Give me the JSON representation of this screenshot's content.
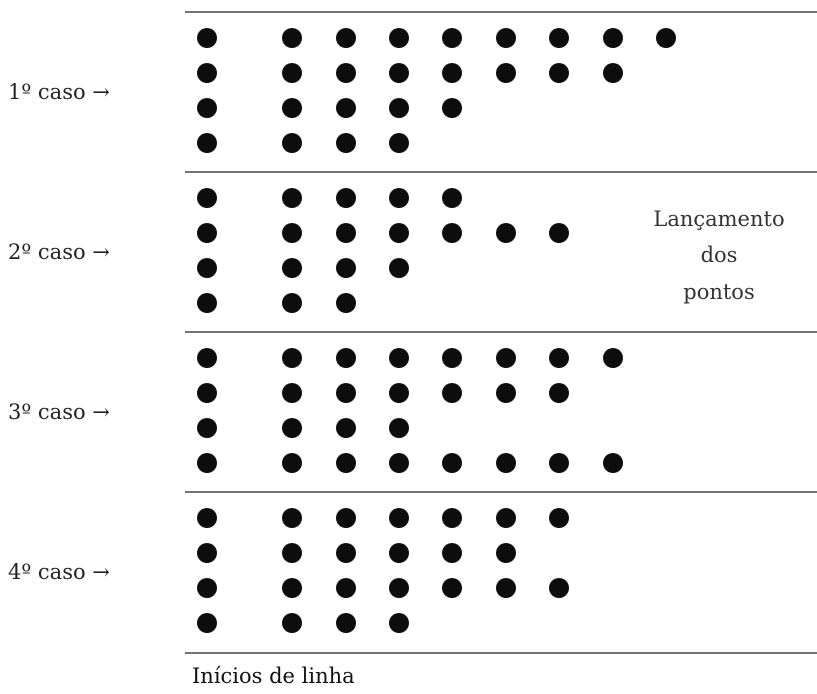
{
  "cases": [
    {
      "label": "1º caso →",
      "rows": [
        9,
        8,
        5,
        4
      ]
    },
    {
      "label": "2º caso →",
      "rows": [
        5,
        7,
        4,
        3
      ]
    },
    {
      "label": "3º caso →",
      "rows": [
        8,
        7,
        4,
        8
      ]
    },
    {
      "label": "4º caso →",
      "rows": [
        7,
        6,
        7,
        4
      ]
    }
  ],
  "side_note": {
    "line1": "Lançamento",
    "line2": "dos",
    "line3": "pontos"
  },
  "footer_label": "Inícios de linha"
}
